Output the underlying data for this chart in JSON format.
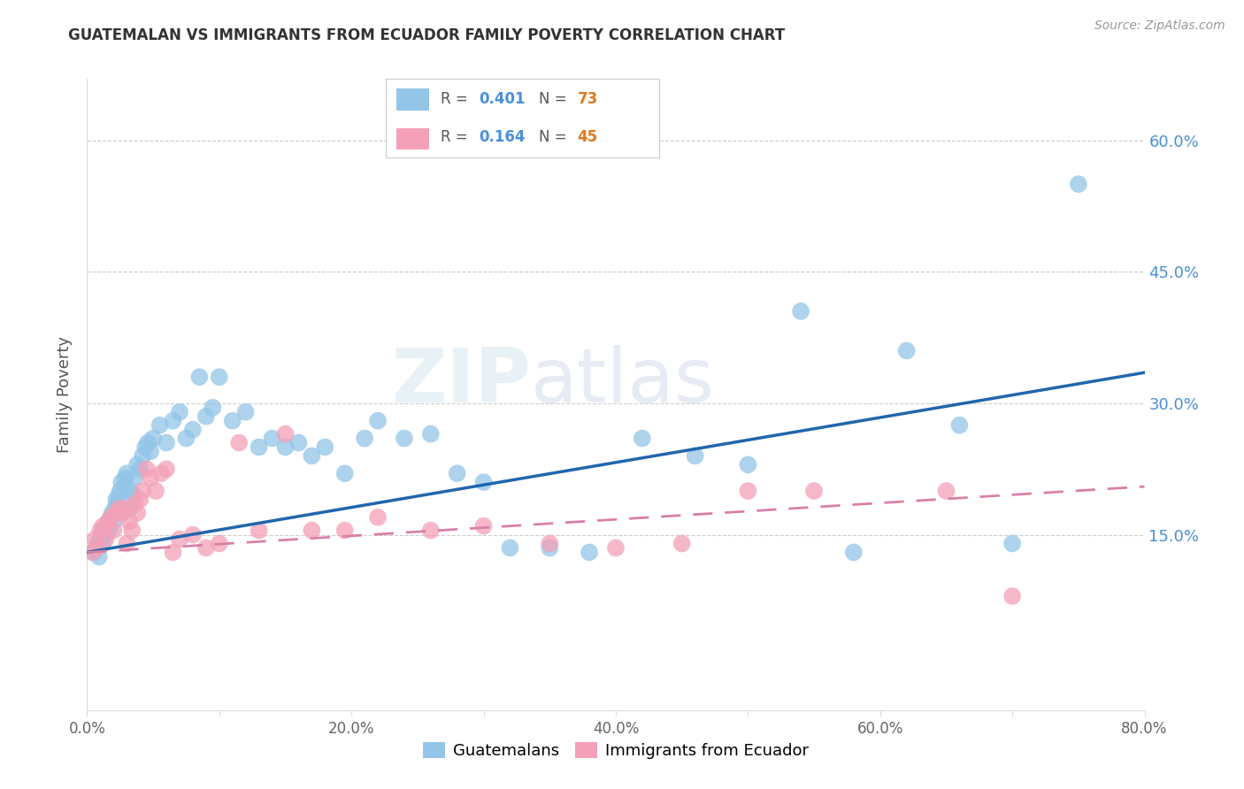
{
  "title": "GUATEMALAN VS IMMIGRANTS FROM ECUADOR FAMILY POVERTY CORRELATION CHART",
  "source": "Source: ZipAtlas.com",
  "ylabel": "Family Poverty",
  "xlim": [
    0.0,
    0.8
  ],
  "ylim": [
    -0.05,
    0.67
  ],
  "blue_color": "#92c5e8",
  "pink_color": "#f4a0b8",
  "trend_blue": "#2166ac",
  "trend_pink": "#d97fa8",
  "watermark_zip": "ZIP",
  "watermark_atlas": "atlas",
  "blue_r": "0.401",
  "blue_n": "73",
  "pink_r": "0.164",
  "pink_n": "45",
  "r_color": "#4a90d9",
  "n_color": "#e07820",
  "blue_x": [
    0.005,
    0.007,
    0.008,
    0.009,
    0.01,
    0.011,
    0.012,
    0.013,
    0.014,
    0.015,
    0.016,
    0.017,
    0.018,
    0.019,
    0.02,
    0.021,
    0.022,
    0.023,
    0.024,
    0.025,
    0.026,
    0.027,
    0.028,
    0.029,
    0.03,
    0.032,
    0.033,
    0.035,
    0.036,
    0.038,
    0.04,
    0.042,
    0.044,
    0.046,
    0.048,
    0.05,
    0.055,
    0.06,
    0.065,
    0.07,
    0.075,
    0.08,
    0.085,
    0.09,
    0.095,
    0.1,
    0.11,
    0.12,
    0.13,
    0.14,
    0.15,
    0.16,
    0.17,
    0.18,
    0.195,
    0.21,
    0.22,
    0.24,
    0.26,
    0.28,
    0.3,
    0.32,
    0.35,
    0.38,
    0.42,
    0.46,
    0.5,
    0.54,
    0.58,
    0.62,
    0.66,
    0.7,
    0.75
  ],
  "blue_y": [
    0.13,
    0.135,
    0.14,
    0.125,
    0.145,
    0.15,
    0.14,
    0.155,
    0.15,
    0.16,
    0.165,
    0.155,
    0.17,
    0.175,
    0.165,
    0.18,
    0.19,
    0.185,
    0.195,
    0.2,
    0.21,
    0.175,
    0.205,
    0.215,
    0.22,
    0.18,
    0.2,
    0.195,
    0.215,
    0.23,
    0.225,
    0.24,
    0.25,
    0.255,
    0.245,
    0.26,
    0.275,
    0.255,
    0.28,
    0.29,
    0.26,
    0.27,
    0.33,
    0.285,
    0.295,
    0.33,
    0.28,
    0.29,
    0.25,
    0.26,
    0.25,
    0.255,
    0.24,
    0.25,
    0.22,
    0.26,
    0.28,
    0.26,
    0.265,
    0.22,
    0.21,
    0.135,
    0.135,
    0.13,
    0.26,
    0.24,
    0.23,
    0.405,
    0.13,
    0.36,
    0.275,
    0.14,
    0.55
  ],
  "pink_x": [
    0.004,
    0.006,
    0.008,
    0.01,
    0.012,
    0.014,
    0.016,
    0.018,
    0.02,
    0.022,
    0.024,
    0.026,
    0.028,
    0.03,
    0.032,
    0.034,
    0.036,
    0.038,
    0.04,
    0.042,
    0.045,
    0.048,
    0.052,
    0.056,
    0.06,
    0.065,
    0.07,
    0.08,
    0.09,
    0.1,
    0.115,
    0.13,
    0.15,
    0.17,
    0.195,
    0.22,
    0.26,
    0.3,
    0.35,
    0.4,
    0.45,
    0.5,
    0.55,
    0.65,
    0.7
  ],
  "pink_y": [
    0.13,
    0.145,
    0.135,
    0.155,
    0.16,
    0.145,
    0.165,
    0.17,
    0.155,
    0.175,
    0.18,
    0.175,
    0.18,
    0.14,
    0.165,
    0.155,
    0.185,
    0.175,
    0.19,
    0.2,
    0.225,
    0.215,
    0.2,
    0.22,
    0.225,
    0.13,
    0.145,
    0.15,
    0.135,
    0.14,
    0.255,
    0.155,
    0.265,
    0.155,
    0.155,
    0.17,
    0.155,
    0.16,
    0.14,
    0.135,
    0.14,
    0.2,
    0.2,
    0.2,
    0.08
  ],
  "blue_trend_start_y": 0.13,
  "blue_trend_end_y": 0.335,
  "pink_trend_start_y": 0.13,
  "pink_trend_end_y": 0.205,
  "x_tick_positions": [
    0.0,
    0.1,
    0.2,
    0.3,
    0.4,
    0.5,
    0.6,
    0.7,
    0.8
  ],
  "x_tick_labels": [
    "0.0%",
    "",
    "20.0%",
    "",
    "40.0%",
    "",
    "60.0%",
    "",
    "80.0%"
  ],
  "y_tick_positions": [
    0.0,
    0.15,
    0.3,
    0.45,
    0.6
  ],
  "y_tick_labels_right": [
    "",
    "15.0%",
    "30.0%",
    "45.0%",
    "60.0%"
  ]
}
